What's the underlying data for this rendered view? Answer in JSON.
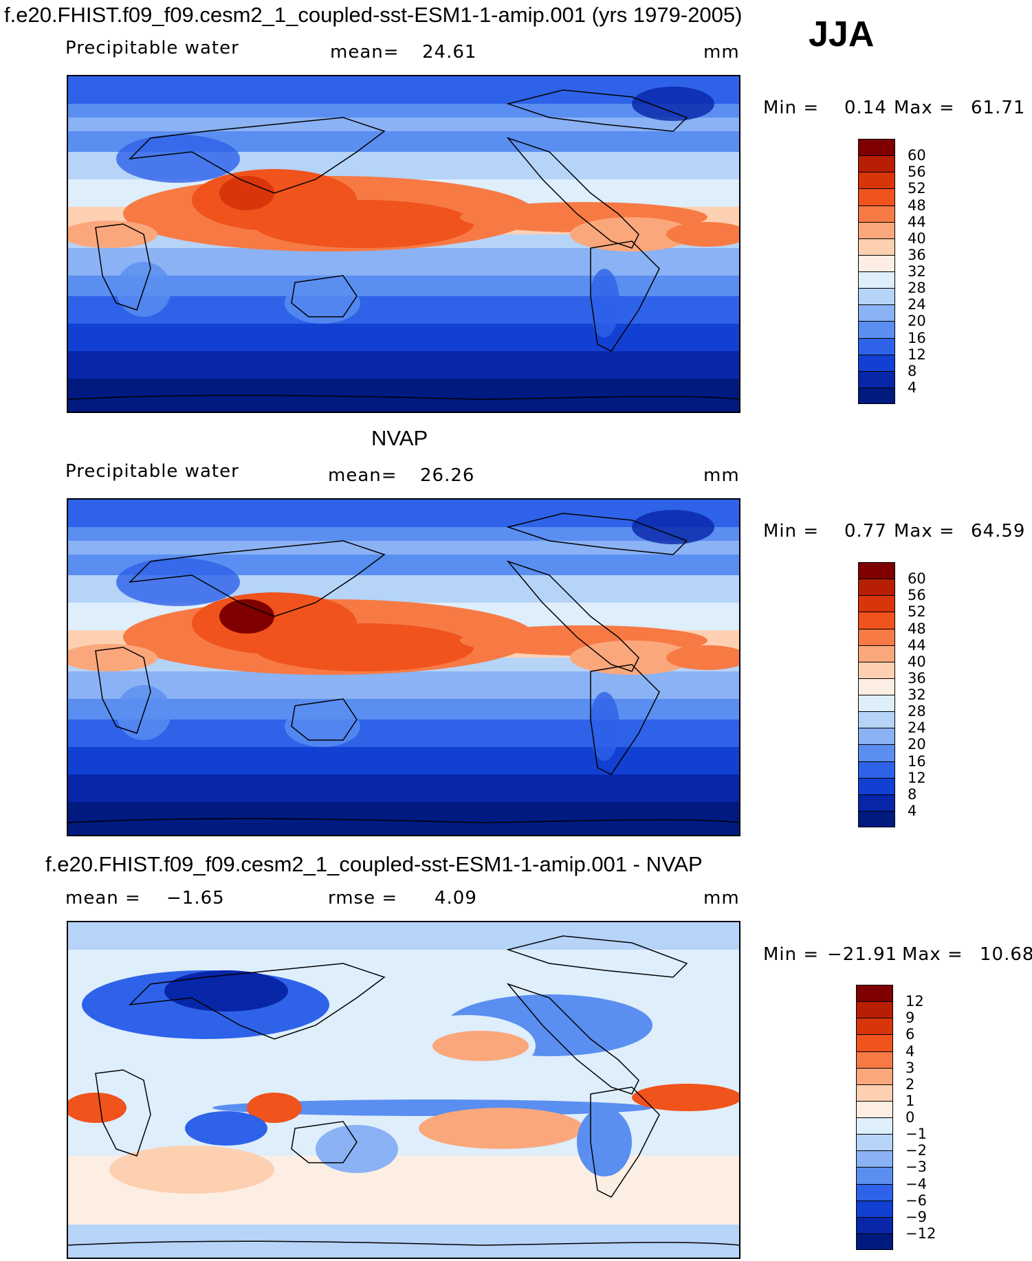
{
  "header": {
    "title": "f.e20.FHIST.f09_f09.cesm2_1_coupled-sst-ESM1-1-amip.001 (yrs 1979-2005)",
    "season": "JJA"
  },
  "panels": [
    {
      "id": "model",
      "heading": "",
      "variable": "Precipitable water",
      "stat_label": "mean=",
      "stat_value": "24.61",
      "stat2_label": "",
      "stat2_value": "",
      "units": "mm",
      "min_label": "Min =",
      "min_value": "0.14",
      "max_label": "Max =",
      "max_value": "61.71",
      "colorbar": {
        "ticks": [
          "60",
          "56",
          "52",
          "48",
          "44",
          "40",
          "36",
          "32",
          "28",
          "24",
          "20",
          "16",
          "12",
          "8",
          "4"
        ],
        "colors": [
          "#7f0000",
          "#b81e04",
          "#d9350a",
          "#f0531c",
          "#f77a45",
          "#fba77c",
          "#fdd0b2",
          "#fdeee3",
          "#deeefb",
          "#b6d3f8",
          "#8ab2f4",
          "#5a8ef0",
          "#2e62e8",
          "#1240d2",
          "#0826a8",
          "#001a80"
        ]
      }
    },
    {
      "id": "obs",
      "heading": "NVAP",
      "variable": "Precipitable water",
      "stat_label": "mean=",
      "stat_value": "26.26",
      "stat2_label": "",
      "stat2_value": "",
      "units": "mm",
      "min_label": "Min =",
      "min_value": "0.77",
      "max_label": "Max =",
      "max_value": "64.59",
      "colorbar": {
        "ticks": [
          "60",
          "56",
          "52",
          "48",
          "44",
          "40",
          "36",
          "32",
          "28",
          "24",
          "20",
          "16",
          "12",
          "8",
          "4"
        ],
        "colors": [
          "#7f0000",
          "#b81e04",
          "#d9350a",
          "#f0531c",
          "#f77a45",
          "#fba77c",
          "#fdd0b2",
          "#fdeee3",
          "#deeefb",
          "#b6d3f8",
          "#8ab2f4",
          "#5a8ef0",
          "#2e62e8",
          "#1240d2",
          "#0826a8",
          "#001a80"
        ]
      }
    },
    {
      "id": "diff",
      "heading": "f.e20.FHIST.f09_f09.cesm2_1_coupled-sst-ESM1-1-amip.001 - NVAP",
      "variable": "",
      "stat_label": "mean =",
      "stat_value": "−1.65",
      "stat2_label": "rmse =",
      "stat2_value": "4.09",
      "units": "mm",
      "min_label": "Min =",
      "min_value": "−21.91",
      "max_label": "Max =",
      "max_value": "10.68",
      "colorbar": {
        "ticks": [
          "12",
          "9",
          "6",
          "4",
          "3",
          "2",
          "1",
          "0",
          "−1",
          "−2",
          "−3",
          "−4",
          "−6",
          "−9",
          "−12"
        ],
        "colors": [
          "#7f0000",
          "#b81e04",
          "#d9350a",
          "#f0531c",
          "#f77a45",
          "#fba77c",
          "#fdd0b2",
          "#fdeee3",
          "#deeefb",
          "#b6d3f8",
          "#8ab2f4",
          "#5a8ef0",
          "#2e62e8",
          "#1240d2",
          "#0826a8",
          "#001a80"
        ]
      }
    }
  ]
}
